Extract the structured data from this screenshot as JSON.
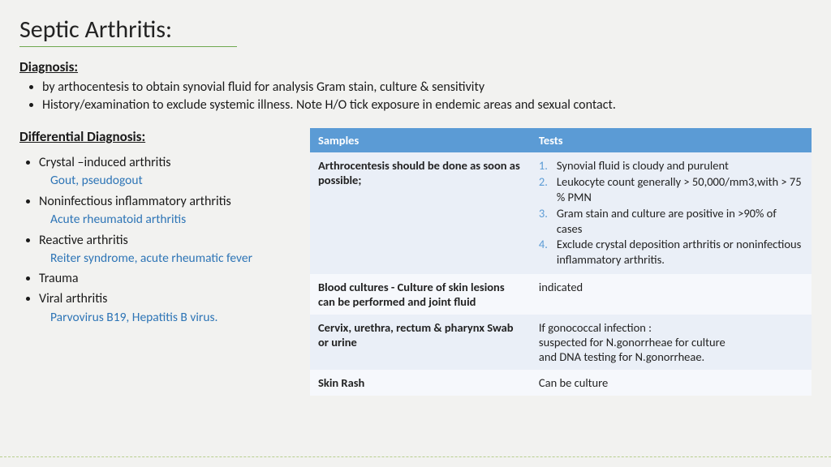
{
  "title": "Septic Arthritis:",
  "diagnosis": {
    "heading": "Diagnosis:",
    "items": [
      "by arthocentesis to obtain synovial fluid for analysis Gram stain, culture & sensitivity",
      "History/examination to exclude systemic illness. Note H/O tick exposure in endemic areas and sexual contact."
    ]
  },
  "differential": {
    "heading": "Differential Diagnosis:",
    "items": [
      {
        "main": "Crystal –induced arthritis",
        "sub": "Gout, pseudogout"
      },
      {
        "main": "Noninfectious inflammatory arthritis",
        "sub": "Acute rheumatoid arthritis"
      },
      {
        "main": "Reactive arthritis",
        "sub": "Reiter syndrome, acute rheumatic fever"
      },
      {
        "main": "Trauma",
        "sub": ""
      },
      {
        "main": "Viral arthritis",
        "sub": "Parvovirus B19, Hepatitis B virus."
      }
    ]
  },
  "table": {
    "header_samples": "Samples",
    "header_tests": "Tests",
    "rows": [
      {
        "sample": "Arthrocentesis should be done as soon as possible;",
        "tests_list": [
          "Synovial fluid is cloudy and purulent",
          "Leukocyte count generally > 50,000/mm3,with > 75 % PMN",
          "Gram stain and culture are positive in >90% of cases",
          "Exclude crystal deposition arthritis or noninfectious inflammatory arthritis."
        ]
      },
      {
        "sample": "Blood cultures - Culture of skin lesions can be performed and joint fluid",
        "tests_text": "indicated"
      },
      {
        "sample": "Cervix, urethra, rectum & pharynx Swab or urine",
        "tests_text": "If gonococcal infection :\nsuspected for N.gonorrheae for culture\n and DNA testing for N.gonorrheae."
      },
      {
        "sample": "Skin Rash",
        "tests_text": "Can be culture"
      }
    ]
  },
  "colors": {
    "accent_blue": "#5b9bd5",
    "link_blue": "#2e75b6",
    "underline_green": "#6fa84f",
    "row_alt": "#eaeff7",
    "row_plain": "#f6f8fc",
    "background": "#f2f2f0"
  }
}
